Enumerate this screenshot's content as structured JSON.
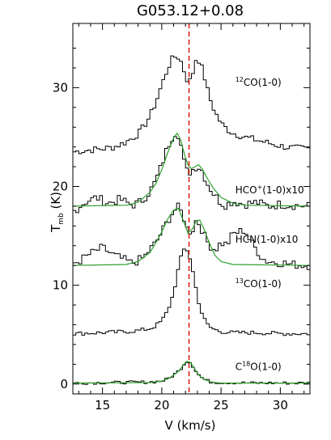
{
  "chart_data": {
    "type": "line",
    "title": "G053.12+0.08",
    "xlabel": "V (km/s)",
    "ylabel_main": "T",
    "ylabel_sub": "mb",
    "ylabel_unit": " (K)",
    "xlim": [
      12.5,
      32.5
    ],
    "ylim": [
      -1,
      36.5
    ],
    "xticks": [
      15,
      20,
      25,
      30
    ],
    "yticks": [
      0,
      10,
      20,
      30
    ],
    "grid": false,
    "vline": {
      "x": 22.3,
      "color": "#d62410",
      "style": "dashed"
    },
    "colors": {
      "observed": "#000000",
      "fit": "#2ca02c"
    },
    "step": 0.25,
    "series": [
      {
        "name": "12CO(1-0)",
        "label_prefix": "",
        "label_sup": "12",
        "label_rest": "CO(1-0)",
        "offset": 23.5,
        "label_x": 26.2,
        "label_y": 30.2,
        "x": [
          12.5,
          14,
          15,
          16,
          17,
          18,
          18.5,
          19,
          19.5,
          20,
          20.5,
          20.8,
          21.2,
          21.5,
          21.8,
          22.0,
          22.3,
          22.6,
          22.9,
          23.2,
          23.6,
          24,
          24.5,
          25,
          25.5,
          26,
          27,
          28,
          29,
          30,
          31,
          32.5
        ],
        "y": [
          0,
          0.2,
          0.3,
          0.5,
          1.0,
          1.8,
          2.6,
          3.6,
          5.0,
          6.8,
          8.4,
          9.3,
          9.7,
          9.5,
          8.6,
          7.6,
          7.0,
          7.9,
          9.5,
          9.2,
          7.6,
          5.6,
          4.0,
          2.9,
          2.3,
          1.9,
          1.5,
          1.2,
          0.9,
          0.6,
          0.4,
          0.3
        ]
      },
      {
        "name": "HCO+(1-0)x10",
        "label_prefix": "HCO",
        "label_sup": "+",
        "label_rest": "(1-0)x10",
        "offset": 18,
        "label_x": 26.2,
        "label_y": 19.3,
        "x": [
          12.5,
          13.5,
          14.5,
          15.5,
          16.5,
          17.5,
          18.3,
          19,
          19.5,
          20,
          20.5,
          21,
          21.3,
          21.6,
          21.9,
          22.2,
          22.6,
          23,
          23.4,
          23.8,
          24.3,
          24.8,
          25.3,
          26,
          27,
          28,
          29,
          30,
          31,
          32.5
        ],
        "y": [
          -0.6,
          0.4,
          0.9,
          0.3,
          0.7,
          0.1,
          0.5,
          1.5,
          2.6,
          4.2,
          6.0,
          7.3,
          7.6,
          6.3,
          4.3,
          3.3,
          3.7,
          4.1,
          3.6,
          2.4,
          1.4,
          0.6,
          0.1,
          0.5,
          0.2,
          0.4,
          0.0,
          0.2,
          0.1,
          0.0
        ]
      },
      {
        "name": "HCN(1-0)x10",
        "label_prefix": "HCN(1-0)x10",
        "label_sup": "",
        "label_rest": "",
        "offset": 12,
        "label_x": 26.2,
        "label_y": 14.3,
        "x": [
          12.5,
          13,
          14,
          15,
          15.5,
          16,
          17,
          17.5,
          18.5,
          19,
          19.5,
          20,
          20.5,
          21,
          21.4,
          21.8,
          22.2,
          22.6,
          22.9,
          23.2,
          23.6,
          24,
          24.5,
          25,
          25.5,
          26,
          26.5,
          27,
          27.5,
          28,
          28.5,
          29,
          30,
          31,
          32.5
        ],
        "y": [
          0.2,
          0.4,
          1.2,
          1.8,
          1.4,
          1.0,
          0.5,
          0.2,
          0.8,
          1.6,
          2.3,
          3.4,
          4.5,
          5.5,
          5.9,
          5.1,
          3.4,
          3.6,
          4.6,
          4.2,
          3.0,
          2.1,
          1.6,
          2.3,
          2.1,
          3.2,
          3.4,
          3.6,
          2.4,
          1.6,
          0.7,
          0.4,
          0.3,
          0.1,
          0.0
        ]
      },
      {
        "name": "13CO(1-0)",
        "label_prefix": "",
        "label_sup": "13",
        "label_rest": "CO(1-0)",
        "offset": 5.1,
        "label_x": 26.2,
        "label_y": 9.8,
        "x": [
          12.5,
          15,
          17,
          18,
          19,
          19.5,
          20,
          20.5,
          21,
          21.3,
          21.6,
          21.9,
          22.2,
          22.5,
          22.8,
          23.1,
          23.4,
          23.7,
          24,
          24.5,
          25,
          26,
          28,
          30,
          32.5
        ],
        "y": [
          0,
          0.1,
          0.2,
          0.3,
          0.5,
          0.8,
          1.3,
          2.3,
          4.1,
          6.0,
          7.6,
          8.6,
          8.4,
          7.1,
          5.1,
          3.3,
          2.0,
          1.2,
          0.7,
          0.4,
          0.2,
          0.1,
          0.1,
          0.0,
          0.0
        ]
      },
      {
        "name": "C18O(1-0)",
        "label_prefix": "C",
        "label_sup": "18",
        "label_rest": "O(1-0)",
        "offset": 0.1,
        "label_x": 26.2,
        "label_y": 1.4,
        "x": [
          12.5,
          16,
          19,
          20,
          20.5,
          21,
          21.5,
          21.8,
          22.1,
          22.4,
          22.7,
          23,
          23.3,
          23.7,
          24.2,
          25,
          28,
          32.5
        ],
        "y": [
          0.0,
          0.05,
          0.1,
          0.2,
          0.4,
          0.8,
          1.3,
          1.8,
          2.2,
          2.1,
          1.6,
          1.0,
          0.6,
          0.3,
          0.1,
          0.05,
          0.0,
          0.0
        ]
      }
    ],
    "fits": [
      {
        "series": "HCO+(1-0)x10",
        "x": [
          12.5,
          17,
          18,
          19,
          19.5,
          20,
          20.5,
          21,
          21.3,
          21.6,
          21.9,
          22.2,
          22.5,
          22.8,
          23.1,
          23.4,
          23.8,
          24.3,
          25,
          26,
          27,
          32.5
        ],
        "y": [
          18.0,
          18.1,
          18.4,
          19.4,
          20.3,
          21.7,
          23.4,
          24.9,
          25.4,
          24.7,
          23.3,
          22.2,
          21.8,
          22.0,
          22.2,
          21.8,
          20.9,
          19.9,
          18.9,
          18.3,
          18.1,
          18.0
        ]
      },
      {
        "series": "HCN(1-0)x10",
        "x": [
          12.5,
          17,
          18,
          19,
          19.5,
          20,
          20.5,
          21,
          21.4,
          21.8,
          22.2,
          22.6,
          22.9,
          23.2,
          23.6,
          24,
          24.5,
          25,
          26,
          32.5
        ],
        "y": [
          12.0,
          12.1,
          12.4,
          13.3,
          14.3,
          15.4,
          16.7,
          17.6,
          17.8,
          16.6,
          15.3,
          15.7,
          16.5,
          16.6,
          15.6,
          14.3,
          13.0,
          12.4,
          12.1,
          12.0
        ]
      },
      {
        "series": "C18O(1-0)",
        "x": [
          12.5,
          19,
          20,
          20.5,
          21,
          21.5,
          21.8,
          22.1,
          22.4,
          22.7,
          23,
          23.3,
          23.7,
          24.2,
          25,
          32.5
        ],
        "y": [
          0.1,
          0.15,
          0.3,
          0.5,
          0.9,
          1.4,
          1.9,
          2.3,
          2.2,
          1.7,
          1.1,
          0.7,
          0.4,
          0.2,
          0.1,
          0.1
        ]
      }
    ]
  }
}
